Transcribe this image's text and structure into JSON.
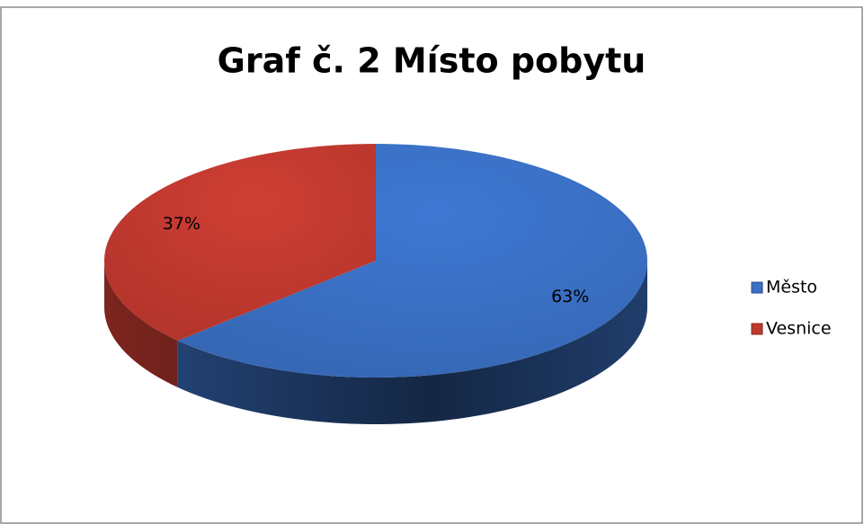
{
  "chart_data": {
    "type": "pie",
    "title": "Graf č. 2 Místo pobytu",
    "categories": [
      "Město",
      "Vesnice"
    ],
    "values": [
      63,
      37
    ],
    "value_labels": [
      "63%",
      "37%"
    ],
    "colors": [
      "#3a6fc3",
      "#c0392f"
    ],
    "legend": "right"
  }
}
